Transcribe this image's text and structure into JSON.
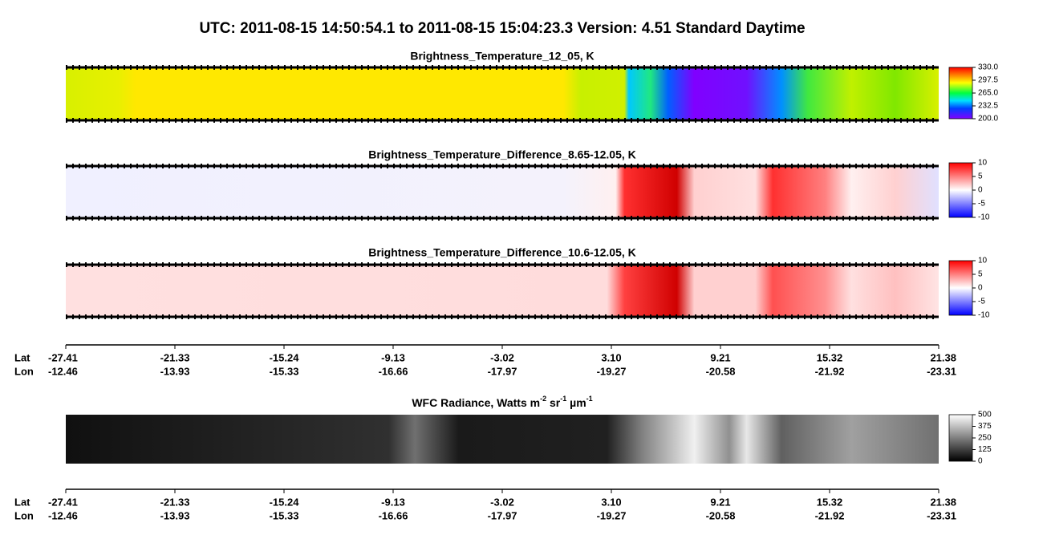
{
  "title": "UTC:  2011-08-15   14:50:54.1  to  2011-08-15   15:04:23.3    Version: 4.51  Standard Daytime",
  "panels": [
    {
      "title": "Brightness_Temperature_12_05, K",
      "colorbar": {
        "lim": [
          200,
          330
        ],
        "ticks": [
          {
            "value": 330,
            "label": "330.0"
          },
          {
            "value": 297.5,
            "label": "297.5"
          },
          {
            "value": 265,
            "label": "265.0"
          },
          {
            "value": 232.5,
            "label": "232.5"
          },
          {
            "value": 200,
            "label": "200.0"
          }
        ]
      }
    },
    {
      "title": "Brightness_Temperature_Difference_8.65-12.05, K",
      "colorbar": {
        "lim": [
          -10,
          10
        ],
        "ticks": [
          10,
          5,
          0,
          -5,
          -10
        ]
      }
    },
    {
      "title": "Brightness_Temperature_Difference_10.6-12.05, K",
      "colorbar": {
        "lim": [
          -10,
          10
        ],
        "ticks": [
          10,
          5,
          0,
          -5,
          -10
        ]
      }
    },
    {
      "title_parts": [
        "WFC Radiance, Watts m",
        "-2",
        " sr",
        "-1",
        " µm",
        "-1"
      ],
      "colorbar": {
        "lim": [
          0,
          500
        ],
        "ticks": [
          500,
          375,
          250,
          125,
          0
        ]
      }
    }
  ],
  "axes": [
    {
      "row_labels": [
        "Lat",
        "Lon"
      ],
      "lat": [
        "-27.41",
        "-21.33",
        "-15.24",
        "-9.13",
        "-3.02",
        "3.10",
        "9.21",
        "15.32",
        "21.38"
      ],
      "lon": [
        "-12.46",
        "-13.93",
        "-15.33",
        "-16.66",
        "-17.97",
        "-19.27",
        "-20.58",
        "-21.92",
        "-23.31"
      ]
    },
    {
      "row_labels": [
        "Lat",
        "Lon"
      ],
      "lat": [
        "-27.41",
        "-21.33",
        "-15.24",
        "-9.13",
        "-3.02",
        "3.10",
        "9.21",
        "15.32",
        "21.38"
      ],
      "lon": [
        "-12.46",
        "-13.93",
        "-15.33",
        "-16.66",
        "-17.97",
        "-19.27",
        "-20.58",
        "-21.92",
        "-23.31"
      ]
    }
  ]
}
